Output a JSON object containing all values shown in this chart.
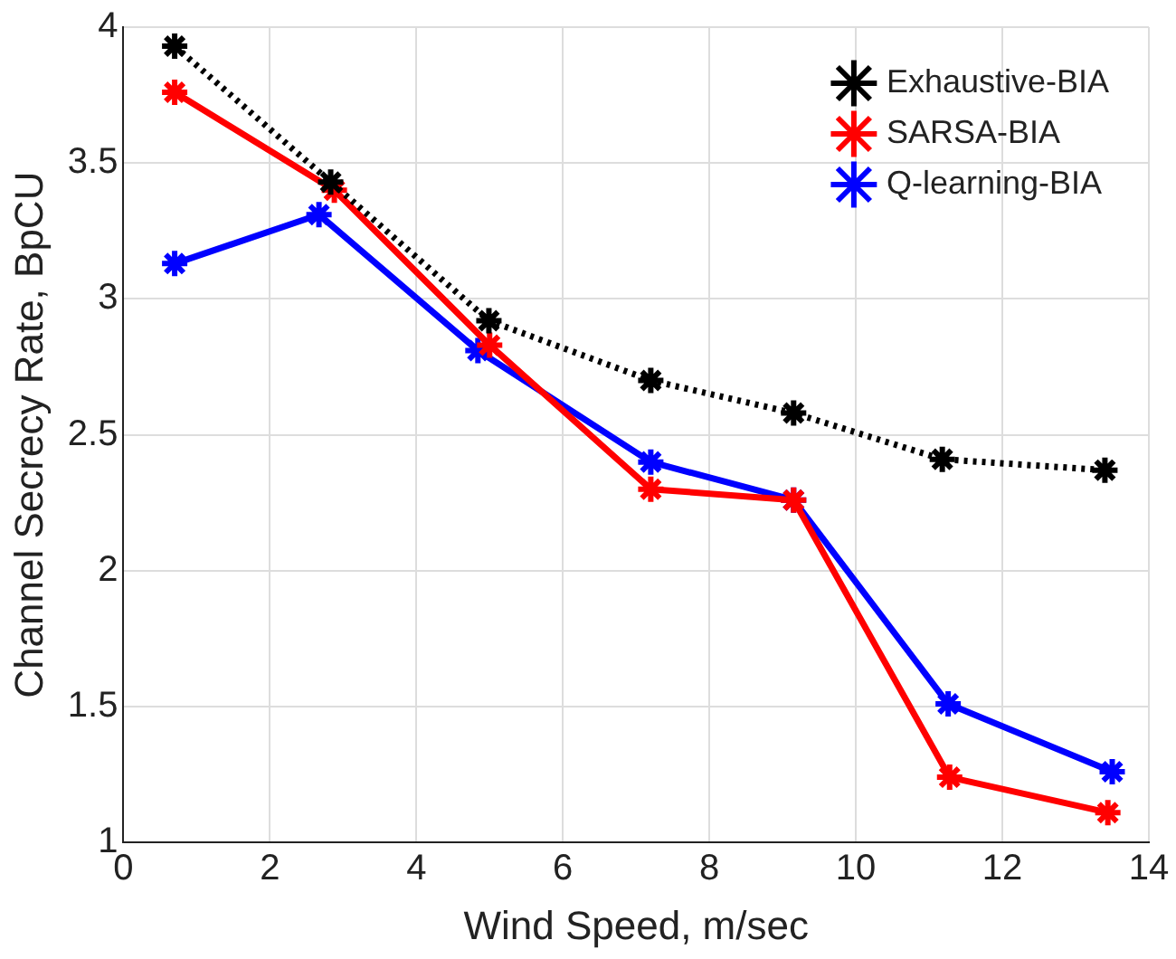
{
  "chart_data": {
    "type": "line",
    "xlabel": "Wind Speed, m/sec",
    "ylabel": "Channel Secrecy Rate, BpCU",
    "xlim": [
      0,
      14
    ],
    "xticks": [
      0,
      2,
      4,
      6,
      8,
      10,
      12,
      14
    ],
    "ylim": [
      1,
      4
    ],
    "yticks": [
      1,
      1.5,
      2,
      2.5,
      3,
      3.5,
      4
    ],
    "grid": true,
    "legend": "top right",
    "marker": "cross",
    "series": [
      {
        "name": "Exhaustive-BIA",
        "color": "#000000",
        "line_style": "dotted",
        "x": [
          0.7,
          2.83,
          4.99,
          7.2,
          9.15,
          11.18,
          13.4
        ],
        "values": [
          3.93,
          3.43,
          2.92,
          2.7,
          2.58,
          2.41,
          2.37
        ]
      },
      {
        "name": "SARSA-BIA",
        "color": "#ff0000",
        "line_style": "solid",
        "x": [
          0.7,
          2.88,
          5.0,
          7.2,
          9.15,
          11.28,
          13.44
        ],
        "values": [
          3.76,
          3.4,
          2.83,
          2.3,
          2.26,
          1.24,
          1.11
        ]
      },
      {
        "name": "Q-learning-BIA",
        "color": "#0000ff",
        "line_style": "solid",
        "x": [
          0.7,
          2.67,
          4.84,
          7.2,
          9.15,
          11.26,
          13.5
        ],
        "values": [
          3.13,
          3.31,
          2.81,
          2.4,
          2.26,
          1.51,
          1.26
        ]
      }
    ]
  }
}
